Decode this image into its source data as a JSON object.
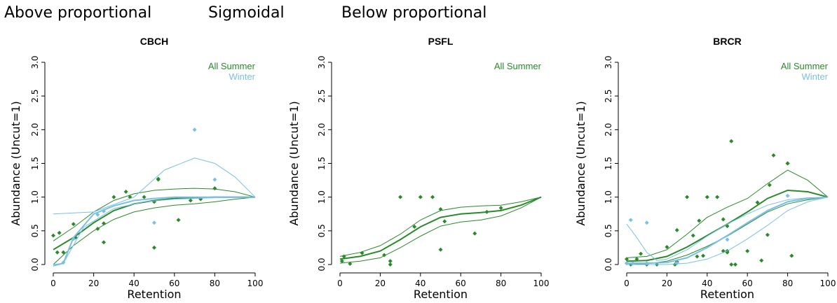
{
  "headings": {
    "left": "Above proportional",
    "middle": "Sigmoidal",
    "right": "Below proportional"
  },
  "colors": {
    "summer": "#2a8a2a",
    "winter": "#7bbfe6",
    "axis": "#000000"
  },
  "chart_data": [
    {
      "type": "scatter",
      "title": "CBCH",
      "xlabel": "Retention",
      "ylabel": "Abundance (Uncut=1)",
      "xlim": [
        0,
        100
      ],
      "ylim": [
        0,
        3
      ],
      "xticks": [
        0,
        20,
        40,
        60,
        80,
        100
      ],
      "yticks": [
        0.0,
        0.5,
        1.0,
        1.5,
        2.0,
        2.5,
        3.0
      ],
      "legend_position": "top-right",
      "series": [
        {
          "name": "All Summer",
          "color_key": "summer",
          "points": [
            [
              0,
              0.43
            ],
            [
              2,
              0.18
            ],
            [
              3,
              0.47
            ],
            [
              5,
              0.18
            ],
            [
              10,
              0.6
            ],
            [
              11,
              0.4
            ],
            [
              22,
              0.53
            ],
            [
              25,
              0.33
            ],
            [
              25,
              0.61
            ],
            [
              30,
              1.0
            ],
            [
              36,
              1.08
            ],
            [
              38,
              1.0
            ],
            [
              45,
              1.0
            ],
            [
              50,
              0.93
            ],
            [
              50,
              0.25
            ],
            [
              52,
              1.26
            ],
            [
              52,
              1.27
            ],
            [
              62,
              0.66
            ],
            [
              68,
              0.95
            ],
            [
              73,
              0.97
            ],
            [
              80,
              1.13
            ]
          ],
          "fit": [
            [
              0,
              0.22
            ],
            [
              10,
              0.4
            ],
            [
              20,
              0.62
            ],
            [
              30,
              0.8
            ],
            [
              40,
              0.9
            ],
            [
              50,
              0.95
            ],
            [
              60,
              0.98
            ],
            [
              70,
              0.99
            ],
            [
              80,
              1.0
            ],
            [
              90,
              1.0
            ],
            [
              100,
              1.0
            ]
          ],
          "band_upper": [
            [
              0,
              0.35
            ],
            [
              10,
              0.55
            ],
            [
              20,
              0.78
            ],
            [
              30,
              0.95
            ],
            [
              40,
              1.05
            ],
            [
              50,
              1.1
            ],
            [
              60,
              1.12
            ],
            [
              70,
              1.13
            ],
            [
              80,
              1.12
            ],
            [
              90,
              1.08
            ],
            [
              100,
              1.0
            ]
          ],
          "band_lower": [
            [
              0,
              0.0
            ],
            [
              10,
              0.28
            ],
            [
              20,
              0.5
            ],
            [
              30,
              0.67
            ],
            [
              40,
              0.78
            ],
            [
              50,
              0.84
            ],
            [
              60,
              0.88
            ],
            [
              70,
              0.9
            ],
            [
              80,
              0.93
            ],
            [
              90,
              0.97
            ],
            [
              100,
              1.0
            ]
          ]
        },
        {
          "name": "Winter",
          "color_key": "winter",
          "points": [
            [
              5,
              0.03
            ],
            [
              10,
              0.38
            ],
            [
              22,
              0.74
            ],
            [
              25,
              0.79
            ],
            [
              50,
              0.62
            ],
            [
              70,
              2.0
            ],
            [
              80,
              1.26
            ]
          ],
          "fit": [
            [
              0,
              -0.02
            ],
            [
              5,
              0.02
            ],
            [
              10,
              0.4
            ],
            [
              20,
              0.75
            ],
            [
              30,
              0.87
            ],
            [
              40,
              0.95
            ],
            [
              50,
              0.98
            ],
            [
              60,
              1.0
            ],
            [
              70,
              1.0
            ],
            [
              80,
              1.0
            ],
            [
              90,
              1.0
            ],
            [
              100,
              1.0
            ]
          ],
          "band_upper": [
            [
              0,
              0.75
            ],
            [
              20,
              0.78
            ],
            [
              40,
              1.0
            ],
            [
              55,
              1.4
            ],
            [
              70,
              1.58
            ],
            [
              80,
              1.5
            ],
            [
              90,
              1.3
            ],
            [
              100,
              1.0
            ]
          ],
          "band_lower": [
            [
              0,
              0.0
            ],
            [
              5,
              0.02
            ],
            [
              15,
              0.55
            ],
            [
              30,
              0.83
            ],
            [
              45,
              0.93
            ],
            [
              60,
              0.97
            ],
            [
              80,
              0.99
            ],
            [
              100,
              1.0
            ]
          ]
        }
      ]
    },
    {
      "type": "scatter",
      "title": "PSFL",
      "xlabel": "Retention",
      "ylabel": "",
      "xlim": [
        0,
        100
      ],
      "ylim": [
        0,
        3
      ],
      "xticks": [
        0,
        20,
        40,
        60,
        80,
        100
      ],
      "yticks": [
        0.0,
        0.5,
        1.0,
        1.5,
        2.0,
        2.5,
        3.0
      ],
      "legend_position": "top-right",
      "series": [
        {
          "name": "All Summer",
          "color_key": "summer",
          "points": [
            [
              1,
              0.05
            ],
            [
              2,
              0.12
            ],
            [
              5,
              0.01
            ],
            [
              11,
              0.17
            ],
            [
              22,
              0.14
            ],
            [
              25,
              0.0
            ],
            [
              25,
              0.05
            ],
            [
              30,
              1.0
            ],
            [
              37,
              0.56
            ],
            [
              40,
              1.0
            ],
            [
              46,
              1.0
            ],
            [
              50,
              0.82
            ],
            [
              50,
              0.22
            ],
            [
              52,
              0.64
            ],
            [
              67,
              0.46
            ],
            [
              73,
              0.78
            ],
            [
              80,
              0.84
            ]
          ],
          "fit": [
            [
              0,
              0.08
            ],
            [
              10,
              0.12
            ],
            [
              20,
              0.2
            ],
            [
              30,
              0.37
            ],
            [
              40,
              0.56
            ],
            [
              50,
              0.7
            ],
            [
              60,
              0.75
            ],
            [
              70,
              0.77
            ],
            [
              80,
              0.8
            ],
            [
              90,
              0.88
            ],
            [
              100,
              1.0
            ]
          ],
          "band_upper": [
            [
              0,
              0.12
            ],
            [
              10,
              0.18
            ],
            [
              20,
              0.28
            ],
            [
              30,
              0.45
            ],
            [
              40,
              0.66
            ],
            [
              50,
              0.8
            ],
            [
              60,
              0.85
            ],
            [
              70,
              0.87
            ],
            [
              80,
              0.88
            ],
            [
              90,
              0.93
            ],
            [
              100,
              1.0
            ]
          ],
          "band_lower": [
            [
              0,
              0.02
            ],
            [
              10,
              0.05
            ],
            [
              20,
              0.1
            ],
            [
              30,
              0.25
            ],
            [
              40,
              0.42
            ],
            [
              50,
              0.57
            ],
            [
              60,
              0.63
            ],
            [
              70,
              0.66
            ],
            [
              80,
              0.72
            ],
            [
              90,
              0.84
            ],
            [
              100,
              1.0
            ]
          ]
        }
      ]
    },
    {
      "type": "scatter",
      "title": "BRCR",
      "xlabel": "Retention",
      "ylabel": "",
      "xlim": [
        0,
        100
      ],
      "ylim": [
        0,
        3
      ],
      "xticks": [
        0,
        20,
        40,
        60,
        80,
        100
      ],
      "yticks": [
        0.0,
        0.5,
        1.0,
        1.5,
        2.0,
        2.5,
        3.0
      ],
      "legend_position": "top-right",
      "series": [
        {
          "name": "All Summer",
          "color_key": "summer",
          "points": [
            [
              0,
              0.02
            ],
            [
              0,
              0.08
            ],
            [
              2,
              0.0
            ],
            [
              5,
              0.08
            ],
            [
              7,
              0.16
            ],
            [
              10,
              0.0
            ],
            [
              15,
              0.0
            ],
            [
              20,
              0.26
            ],
            [
              24,
              0.0
            ],
            [
              25,
              0.04
            ],
            [
              25,
              0.51
            ],
            [
              30,
              1.0
            ],
            [
              33,
              0.43
            ],
            [
              35,
              0.12
            ],
            [
              36,
              0.65
            ],
            [
              38,
              0.13
            ],
            [
              40,
              1.0
            ],
            [
              45,
              1.0
            ],
            [
              48,
              0.67
            ],
            [
              48,
              0.2
            ],
            [
              50,
              0.57
            ],
            [
              50,
              0.18
            ],
            [
              50,
              0.2
            ],
            [
              52,
              0.0
            ],
            [
              52,
              1.83
            ],
            [
              54,
              0.0
            ],
            [
              60,
              0.2
            ],
            [
              65,
              0.92
            ],
            [
              67,
              0.06
            ],
            [
              70,
              0.44
            ],
            [
              71,
              1.18
            ],
            [
              73,
              1.62
            ],
            [
              80,
              1.5
            ],
            [
              80,
              1.5
            ],
            [
              82,
              0.13
            ]
          ],
          "fit": [
            [
              0,
              0.05
            ],
            [
              10,
              0.06
            ],
            [
              20,
              0.12
            ],
            [
              30,
              0.26
            ],
            [
              40,
              0.43
            ],
            [
              50,
              0.6
            ],
            [
              60,
              0.78
            ],
            [
              70,
              0.98
            ],
            [
              80,
              1.1
            ],
            [
              90,
              1.08
            ],
            [
              100,
              1.0
            ]
          ],
          "band_upper": [
            [
              0,
              0.1
            ],
            [
              10,
              0.12
            ],
            [
              20,
              0.22
            ],
            [
              30,
              0.45
            ],
            [
              40,
              0.7
            ],
            [
              50,
              0.85
            ],
            [
              60,
              0.98
            ],
            [
              70,
              1.2
            ],
            [
              80,
              1.4
            ],
            [
              90,
              1.25
            ],
            [
              100,
              1.0
            ]
          ],
          "band_lower": [
            [
              0,
              0.0
            ],
            [
              10,
              0.01
            ],
            [
              20,
              0.05
            ],
            [
              30,
              0.14
            ],
            [
              40,
              0.27
            ],
            [
              50,
              0.42
            ],
            [
              60,
              0.6
            ],
            [
              70,
              0.78
            ],
            [
              80,
              0.9
            ],
            [
              90,
              0.96
            ],
            [
              100,
              1.0
            ]
          ]
        },
        {
          "name": "Winter",
          "color_key": "winter",
          "points": [
            [
              0,
              0.02
            ],
            [
              2,
              0.66
            ],
            [
              3,
              0.02
            ],
            [
              10,
              0.62
            ],
            [
              10,
              0.02
            ],
            [
              25,
              0.02
            ],
            [
              50,
              0.37
            ],
            [
              80,
              1.02
            ]
          ],
          "fit": [
            [
              0,
              0.02
            ],
            [
              10,
              0.02
            ],
            [
              20,
              0.03
            ],
            [
              30,
              0.1
            ],
            [
              40,
              0.25
            ],
            [
              50,
              0.43
            ],
            [
              60,
              0.62
            ],
            [
              70,
              0.8
            ],
            [
              80,
              0.93
            ],
            [
              90,
              0.98
            ],
            [
              100,
              1.0
            ]
          ],
          "band_upper": [
            [
              0,
              0.6
            ],
            [
              5,
              0.4
            ],
            [
              10,
              0.18
            ],
            [
              15,
              0.06
            ],
            [
              20,
              0.08
            ],
            [
              30,
              0.22
            ],
            [
              40,
              0.42
            ],
            [
              50,
              0.6
            ],
            [
              60,
              0.75
            ],
            [
              70,
              0.88
            ],
            [
              80,
              0.96
            ],
            [
              90,
              0.99
            ],
            [
              100,
              1.0
            ]
          ],
          "band_lower": [
            [
              0,
              0.0
            ],
            [
              20,
              0.0
            ],
            [
              30,
              0.02
            ],
            [
              40,
              0.08
            ],
            [
              50,
              0.2
            ],
            [
              60,
              0.38
            ],
            [
              70,
              0.58
            ],
            [
              80,
              0.8
            ],
            [
              90,
              0.93
            ],
            [
              100,
              1.0
            ]
          ]
        }
      ]
    }
  ]
}
